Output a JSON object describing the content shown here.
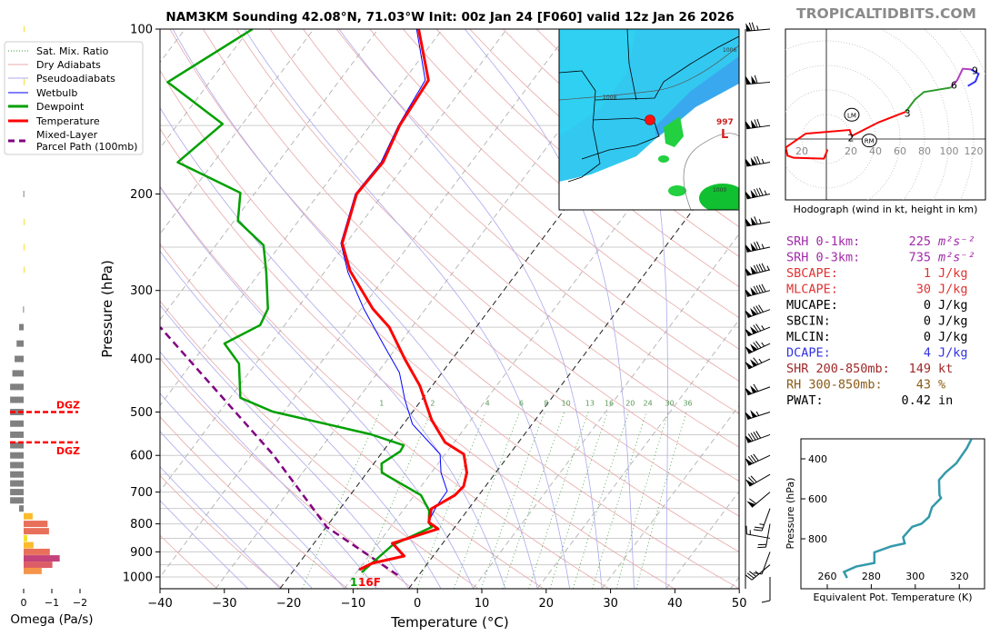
{
  "header": {
    "title": "NAM3KM Sounding 42.08°N, 71.03°W Init: 00z Jan 24 [F060] valid 12z Jan 26 2026",
    "watermark": "TROPICALTIDBITS.COM"
  },
  "legend": {
    "items": [
      "Sat. Mix. Ratio",
      "Dry Adiabats",
      "Pseudoadiabats",
      "Wetbulb",
      "Dewpoint",
      "Temperature",
      "Mixed-Layer",
      "Parcel Path (100mb)"
    ]
  },
  "surface_labels": {
    "dewpoint": "1",
    "temperature": "16F"
  },
  "dgz": {
    "label": "DGZ",
    "pressures_hpa": [
      500,
      568
    ]
  },
  "map": {
    "labels": [
      "1008",
      "1006",
      "1000"
    ],
    "low_pressure": "997",
    "low_symbol": "L"
  },
  "stats": [
    {
      "label": "SRH 0-1km:",
      "value": "225",
      "unit": "m²s⁻²",
      "color": "#a12aa8"
    },
    {
      "label": "SRH 0-3km:",
      "value": "735",
      "unit": "m²s⁻²",
      "color": "#a12aa8"
    },
    {
      "label": "SBCAPE:",
      "value": "1",
      "unit": "J/kg",
      "color": "#e03232"
    },
    {
      "label": "MLCAPE:",
      "value": "30",
      "unit": "J/kg",
      "color": "#e03232"
    },
    {
      "label": "MUCAPE:",
      "value": "0",
      "unit": "J/kg",
      "color": "#000000"
    },
    {
      "label": "SBCIN:",
      "value": "0",
      "unit": "J/kg",
      "color": "#000000"
    },
    {
      "label": "MLCIN:",
      "value": "0",
      "unit": "J/kg",
      "color": "#000000"
    },
    {
      "label": "DCAPE:",
      "value": "4",
      "unit": "J/kg",
      "color": "#3232e0"
    },
    {
      "label": "SHR 200-850mb:",
      "value": "149",
      "unit": "kt",
      "color": "#a02828"
    },
    {
      "label": "RH 300-850mb:",
      "value": "43",
      "unit": "%",
      "color": "#8b5a14"
    },
    {
      "label": "PWAT:",
      "value": "0.42",
      "unit": "in",
      "color": "#000000"
    }
  ],
  "chart_data": [
    {
      "type": "line",
      "id": "skewt",
      "xlabel": "Temperature (°C)",
      "ylabel": "Pressure (hPa)",
      "xlim": [
        -40,
        50
      ],
      "ylim": [
        1050,
        100
      ],
      "xticks": [
        -40,
        -30,
        -20,
        -10,
        0,
        10,
        20,
        30,
        40,
        50
      ],
      "yticks": [
        100,
        200,
        300,
        400,
        500,
        600,
        700,
        800,
        900,
        1000
      ],
      "mixing_ratio_labels": [
        1,
        2,
        4,
        6,
        8,
        10,
        13,
        16,
        20,
        24,
        30,
        36
      ],
      "series": [
        {
          "name": "Temperature",
          "color": "#ff0000",
          "points": [
            [
              970,
              -9.9
            ],
            [
              944,
              -8.6
            ],
            [
              916,
              -4.5
            ],
            [
              868,
              -7.8
            ],
            [
              817,
              -2.4
            ],
            [
              795,
              -4.6
            ],
            [
              751,
              -5.8
            ],
            [
              709,
              -3.7
            ],
            [
              683,
              -3.4
            ],
            [
              645,
              -4.5
            ],
            [
              597,
              -7.1
            ],
            [
              568,
              -11.4
            ],
            [
              517,
              -16.1
            ],
            [
              448,
              -21.9
            ],
            [
              400,
              -27.4
            ],
            [
              350,
              -33.5
            ],
            [
              324,
              -38.2
            ],
            [
              276,
              -46.2
            ],
            [
              246,
              -50.6
            ],
            [
              200,
              -54.1
            ],
            [
              175,
              -53.7
            ],
            [
              150,
              -55.4
            ],
            [
              124,
              -56.2
            ],
            [
              100,
              -63.7
            ]
          ]
        },
        {
          "name": "Dewpoint",
          "color": "#00a000",
          "points": [
            [
              981,
              -9.2
            ],
            [
              875,
              -7.6
            ],
            [
              811,
              -3.6
            ],
            [
              795,
              -4.6
            ],
            [
              757,
              -5.9
            ],
            [
              709,
              -9.0
            ],
            [
              645,
              -17.7
            ],
            [
              621,
              -18.8
            ],
            [
              590,
              -17.3
            ],
            [
              575,
              -17.5
            ],
            [
              549,
              -23.9
            ],
            [
              499,
              -41.8
            ],
            [
              471,
              -48.4
            ],
            [
              408,
              -52.6
            ],
            [
              375,
              -57.2
            ],
            [
              347,
              -53.8
            ],
            [
              324,
              -54.5
            ],
            [
              278,
              -59.0
            ],
            [
              248,
              -62.6
            ],
            [
              224,
              -69.4
            ],
            [
              199,
              -72.3
            ],
            [
              175,
              -85.6
            ],
            [
              149,
              -83.1
            ],
            [
              125,
              -96.5
            ],
            [
              100,
              -89.5
            ]
          ]
        },
        {
          "name": "Wetbulb",
          "color": "#0000ff",
          "points": [
            [
              970,
              -10.0
            ],
            [
              944,
              -8.8
            ],
            [
              916,
              -4.7
            ],
            [
              868,
              -8.0
            ],
            [
              817,
              -2.6
            ],
            [
              795,
              -4.7
            ],
            [
              742,
              -5.3
            ],
            [
              697,
              -5.4
            ],
            [
              645,
              -8.5
            ],
            [
              597,
              -10.8
            ],
            [
              526,
              -18.6
            ],
            [
              475,
              -22.6
            ],
            [
              424,
              -26.6
            ],
            [
              371,
              -33.1
            ],
            [
              324,
              -39.6
            ],
            [
              278,
              -46.3
            ],
            [
              246,
              -50.8
            ],
            [
              200,
              -54.3
            ],
            [
              175,
              -54.0
            ],
            [
              150,
              -55.6
            ],
            [
              124,
              -56.7
            ],
            [
              100,
              -64.0
            ]
          ]
        },
        {
          "name": "Mixed-Layer Parcel Path (100mb)",
          "color": "#800080",
          "points": [
            [
              992,
              -3.3
            ],
            [
              811,
              -19.9
            ],
            [
              597,
              -36.8
            ],
            [
              350,
              -69.1
            ]
          ]
        }
      ],
      "wind_barbs": [
        {
          "p": 100,
          "dir": 265,
          "spd": 75
        },
        {
          "p": 125,
          "dir": 265,
          "spd": 110
        },
        {
          "p": 150,
          "dir": 262,
          "spd": 120
        },
        {
          "p": 175,
          "dir": 260,
          "spd": 125
        },
        {
          "p": 200,
          "dir": 258,
          "spd": 135
        },
        {
          "p": 225,
          "dir": 260,
          "spd": 115
        },
        {
          "p": 250,
          "dir": 258,
          "spd": 125
        },
        {
          "p": 275,
          "dir": 256,
          "spd": 145
        },
        {
          "p": 300,
          "dir": 255,
          "spd": 140
        },
        {
          "p": 325,
          "dir": 250,
          "spd": 130
        },
        {
          "p": 350,
          "dir": 248,
          "spd": 125
        },
        {
          "p": 375,
          "dir": 245,
          "spd": 125
        },
        {
          "p": 400,
          "dir": 245,
          "spd": 115
        },
        {
          "p": 450,
          "dir": 250,
          "spd": 110
        },
        {
          "p": 500,
          "dir": 252,
          "spd": 105
        },
        {
          "p": 550,
          "dir": 250,
          "spd": 90
        },
        {
          "p": 600,
          "dir": 245,
          "spd": 80
        },
        {
          "p": 650,
          "dir": 240,
          "spd": 70
        },
        {
          "p": 700,
          "dir": 230,
          "spd": 60
        },
        {
          "p": 750,
          "dir": 200,
          "spd": 25
        },
        {
          "p": 800,
          "dir": 190,
          "spd": 20
        },
        {
          "p": 850,
          "dir": 280,
          "spd": 15
        },
        {
          "p": 900,
          "dir": 200,
          "spd": 10
        },
        {
          "p": 950,
          "dir": 230,
          "spd": 35
        },
        {
          "p": 1000,
          "dir": 180,
          "spd": 10
        }
      ]
    },
    {
      "type": "bar",
      "id": "omega",
      "xlabel": "Omega (Pa/s)",
      "xticks": [
        0,
        -1,
        -2
      ],
      "xtick_labels": [
        "0",
        "−1",
        "−2"
      ],
      "pressures": [
        100,
        125,
        200,
        225,
        250,
        275,
        325,
        350,
        375,
        400,
        425,
        450,
        475,
        500,
        525,
        550,
        575,
        600,
        625,
        650,
        675,
        700,
        725,
        750,
        775,
        800,
        825,
        850,
        875,
        900,
        925,
        950,
        975
      ],
      "values": [
        -0.03,
        -0.03,
        0.01,
        -0.02,
        -0.02,
        -0.02,
        0.02,
        0.16,
        0.25,
        0.32,
        0.4,
        0.48,
        0.48,
        0.48,
        0.48,
        0.48,
        0.48,
        0.48,
        0.48,
        0.48,
        0.48,
        0.48,
        0.48,
        0.16,
        -0.32,
        -0.85,
        -0.9,
        -0.13,
        -0.35,
        -0.93,
        -1.28,
        -1.02,
        -0.64
      ]
    },
    {
      "type": "line",
      "id": "hodograph",
      "caption": "Hodograph (wind in kt, height in km)",
      "ring_radii_kt": [
        20,
        40,
        60,
        80,
        100,
        120,
        140
      ],
      "xtick_labels": [
        {
          "u": -20,
          "text": "20"
        },
        {
          "u": 20,
          "text": "20"
        },
        {
          "u": 40,
          "text": "40"
        },
        {
          "u": 60,
          "text": "60"
        },
        {
          "u": 80,
          "text": "80"
        },
        {
          "u": 100,
          "text": "100"
        },
        {
          "u": 120,
          "text": "120"
        }
      ],
      "segments": [
        {
          "layer": "0-3 km",
          "color": "#ff0000",
          "points": [
            [
              1,
              -8.6
            ],
            [
              -2,
              -16
            ],
            [
              -26.7,
              -15.3
            ],
            [
              -31.6,
              -13.6
            ],
            [
              -33.1,
              -6.9
            ],
            [
              -16.8,
              4.4
            ],
            [
              19,
              7.4
            ],
            [
              19.8,
              4.9
            ],
            [
              20.7,
              2.5
            ],
            [
              42.5,
              13.6
            ],
            [
              64.7,
              22.2
            ]
          ]
        },
        {
          "layer": "3-6 km",
          "color": "#2a9a2a",
          "points": [
            [
              64.7,
              22.2
            ],
            [
              72.1,
              32.1
            ],
            [
              79.5,
              38.3
            ],
            [
              101.7,
              42
            ]
          ]
        },
        {
          "layer": "6-9 km",
          "color": "#b040c0",
          "points": [
            [
              101.7,
              42
            ],
            [
              106.7,
              48.1
            ],
            [
              111.1,
              57.3
            ],
            [
              117.8,
              56.8
            ]
          ]
        },
        {
          "layer": "9+ km",
          "color": "#3030ff",
          "points": [
            [
              117.8,
              56.8
            ],
            [
              124,
              53.1
            ],
            [
              121.5,
              46.9
            ],
            [
              115.3,
              43.2
            ]
          ]
        }
      ],
      "height_labels": [
        {
          "text": "1",
          "u": -34,
          "v": -7
        },
        {
          "text": "2",
          "u": 20,
          "v": 1
        },
        {
          "text": "3",
          "u": 66,
          "v": 21
        },
        {
          "text": "6",
          "u": 104,
          "v": 44
        },
        {
          "text": "9",
          "u": 121,
          "v": 56
        }
      ],
      "storm_motion": [
        {
          "text": "LM",
          "u": 20.7,
          "v": 19.8
        },
        {
          "text": "RM",
          "u": 35,
          "v": -1.2
        }
      ]
    },
    {
      "type": "line",
      "id": "theta_e",
      "xlabel": "Equivalent Pot. Temperature (K)",
      "ylabel": "Pressure (hPa)",
      "xticks": [
        260,
        280,
        300,
        320
      ],
      "yticks": [
        400,
        600,
        800
      ],
      "color": "#3399aa",
      "points": [
        [
          302,
          325.5
        ],
        [
          347,
          323.4
        ],
        [
          423,
          318.6
        ],
        [
          468,
          313.8
        ],
        [
          506,
          310.8
        ],
        [
          581,
          311.0
        ],
        [
          596,
          311.7
        ],
        [
          642,
          307.6
        ],
        [
          691,
          306.2
        ],
        [
          725,
          302.8
        ],
        [
          740,
          298.6
        ],
        [
          792,
          294.5
        ],
        [
          823,
          295.2
        ],
        [
          838,
          289.0
        ],
        [
          868,
          281.4
        ],
        [
          921,
          281.4
        ],
        [
          939,
          273.1
        ],
        [
          966,
          267.6
        ],
        [
          996,
          269.0
        ]
      ]
    }
  ]
}
